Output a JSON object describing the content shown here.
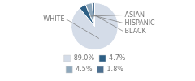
{
  "chart_data": {
    "type": "pie",
    "categories": [
      "WHITE",
      "ASIAN",
      "HISPANIC",
      "BLACK"
    ],
    "values": [
      89.0,
      4.7,
      4.5,
      1.8
    ],
    "value_labels": [
      "89.0%",
      "4.7%",
      "4.5%",
      "1.8%"
    ],
    "colors": [
      "#d4dce8",
      "#2d5f85",
      "#8fa8bc",
      "#4d7090"
    ],
    "legend": "bottom"
  }
}
